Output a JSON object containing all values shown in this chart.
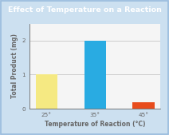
{
  "title": "Effect of Temperature on a Reaction",
  "xlabel": "Temperature of Reaction (°C)",
  "ylabel": "Total Product (mg)",
  "categories": [
    "25°",
    "35°",
    "45°"
  ],
  "values": [
    1.0,
    2.0,
    0.18
  ],
  "bar_colors": [
    "#f5e982",
    "#29abe2",
    "#e84c1c"
  ],
  "ylim": [
    0,
    2.5
  ],
  "yticks": [
    0,
    1,
    2
  ],
  "background_color": "#cce0f0",
  "plot_bg_color": "#f5f5f5",
  "title_bg_color": "#1a9dd9",
  "title_text_color": "#ffffff",
  "axis_color": "#666666",
  "grid_color": "#bbbbbb",
  "border_color": "#99bbdd",
  "title_fontsize": 6.8,
  "label_fontsize": 5.5,
  "tick_fontsize": 5.2,
  "bar_width": 0.45
}
